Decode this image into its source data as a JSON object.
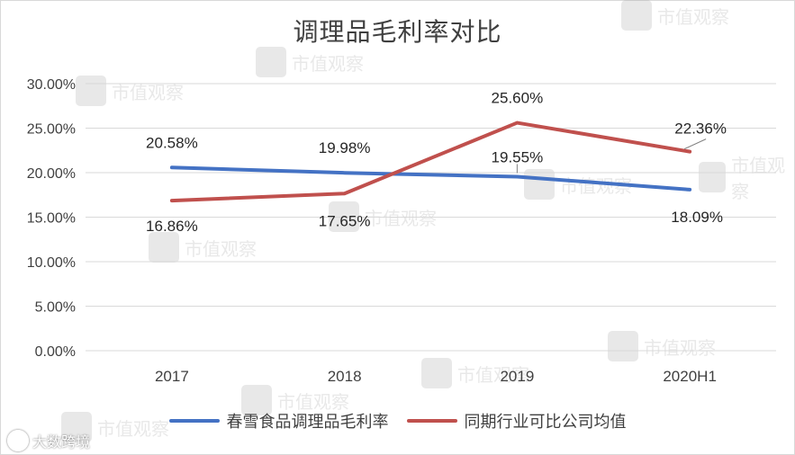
{
  "chart_data": {
    "type": "line",
    "title": "调理品毛利率对比",
    "categories": [
      "2017",
      "2018",
      "2019",
      "2020H1"
    ],
    "series": [
      {
        "name": "春雪食品调理品毛利率",
        "values": [
          20.58,
          19.98,
          19.55,
          18.09
        ],
        "color": "#4472C4"
      },
      {
        "name": "同期行业可比公司均值",
        "values": [
          16.86,
          17.65,
          25.6,
          22.36
        ],
        "color": "#C0504D"
      }
    ],
    "data_labels": {
      "春雪食品调理品毛利率": [
        "20.58%",
        "19.98%",
        "19.55%",
        "18.09%"
      ],
      "同期行业可比公司均值": [
        "16.86%",
        "17.65%",
        "25.60%",
        "22.36%"
      ]
    },
    "ylim": [
      0,
      30
    ],
    "yticks": [
      "0.00%",
      "5.00%",
      "10.00%",
      "15.00%",
      "20.00%",
      "25.00%",
      "30.00%"
    ],
    "grid": true,
    "legend": "bottom",
    "xlabel": "",
    "ylabel": ""
  },
  "watermark": {
    "text": "市值观察",
    "brand": "大数跨境"
  }
}
